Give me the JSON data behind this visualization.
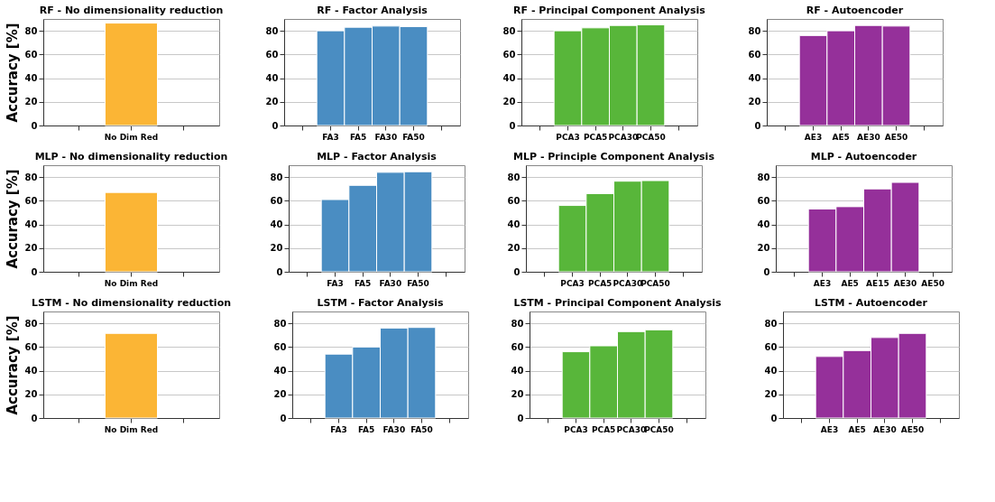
{
  "chart_data": [
    {
      "type": "bar",
      "title": "RF - No dimensionality reduction",
      "ylabel": "Accuracy [%]",
      "categories": [
        null,
        "No Dim Red",
        null
      ],
      "values": [
        null,
        86.5,
        null
      ],
      "color": "#fbb535",
      "ylim": [
        0,
        90
      ],
      "yticks": [
        0,
        20,
        40,
        60,
        80
      ],
      "grid": "y"
    },
    {
      "type": "bar",
      "title": "RF - Factor Analysis",
      "categories": [
        null,
        "FA3",
        "FA5",
        "FA30",
        "FA50",
        null
      ],
      "values": [
        null,
        80,
        83,
        84,
        83.5,
        null
      ],
      "color": "#4a8dc2",
      "ylim": [
        0,
        90
      ],
      "yticks": [
        0,
        20,
        40,
        60,
        80
      ],
      "grid": "y"
    },
    {
      "type": "bar",
      "title": "RF - Principal Component Analysis",
      "categories": [
        null,
        "PCA3",
        "PCA5",
        "PCA30",
        "PCA50",
        null
      ],
      "values": [
        null,
        80,
        82.5,
        84.5,
        85,
        null
      ],
      "color": "#58b63a",
      "ylim": [
        0,
        90
      ],
      "yticks": [
        0,
        20,
        40,
        60,
        80
      ],
      "grid": "y"
    },
    {
      "type": "bar",
      "title": "RF - Autoencoder",
      "categories": [
        null,
        "AE3",
        "AE5",
        "AE30",
        "AE50",
        null
      ],
      "values": [
        null,
        76,
        80,
        84.5,
        84,
        null
      ],
      "color": "#95309a",
      "ylim": [
        0,
        90
      ],
      "yticks": [
        0,
        20,
        40,
        60,
        80
      ],
      "grid": "y"
    },
    {
      "type": "bar",
      "title": "MLP - No dimensionality reduction",
      "ylabel": "Accuracy [%]",
      "categories": [
        null,
        "No Dim Red",
        null
      ],
      "values": [
        null,
        67,
        null
      ],
      "color": "#fbb535",
      "ylim": [
        0,
        90
      ],
      "yticks": [
        0,
        20,
        40,
        60,
        80
      ],
      "grid": "y"
    },
    {
      "type": "bar",
      "title": "MLP - Factor Analysis",
      "categories": [
        null,
        "FA3",
        "FA5",
        "FA30",
        "FA50",
        null
      ],
      "values": [
        null,
        61,
        73,
        84,
        84.5,
        null
      ],
      "color": "#4a8dc2",
      "ylim": [
        0,
        90
      ],
      "yticks": [
        0,
        20,
        40,
        60,
        80
      ],
      "grid": "y"
    },
    {
      "type": "bar",
      "title": "MLP - Principle Component Analysis",
      "categories": [
        null,
        "PCA3",
        "PCA5",
        "PCA30",
        "PCA50",
        null
      ],
      "values": [
        null,
        56,
        66,
        76.5,
        77,
        null
      ],
      "color": "#58b63a",
      "ylim": [
        0,
        90
      ],
      "yticks": [
        0,
        20,
        40,
        60,
        80
      ],
      "grid": "y"
    },
    {
      "type": "bar",
      "title": "MLP - Autoencoder",
      "categories": [
        null,
        "AE3",
        "AE5",
        "AE15",
        "AE30",
        "AE50"
      ],
      "values": [
        null,
        53,
        55,
        70,
        75.5,
        null
      ],
      "color": "#95309a",
      "ylim": [
        0,
        90
      ],
      "yticks": [
        0,
        20,
        40,
        60,
        80
      ],
      "grid": "y"
    },
    {
      "type": "bar",
      "title": "LSTM - No dimensionality reduction",
      "ylabel": "Accuracy [%]",
      "categories": [
        null,
        "No Dim Red",
        null
      ],
      "values": [
        null,
        71.5,
        null
      ],
      "color": "#fbb535",
      "ylim": [
        0,
        90
      ],
      "yticks": [
        0,
        20,
        40,
        60,
        80
      ],
      "grid": "y"
    },
    {
      "type": "bar",
      "title": "LSTM - Factor Analysis",
      "categories": [
        null,
        "FA3",
        "FA5",
        "FA30",
        "FA50",
        null
      ],
      "values": [
        null,
        54,
        60,
        76,
        76.5,
        null
      ],
      "color": "#4a8dc2",
      "ylim": [
        0,
        90
      ],
      "yticks": [
        0,
        20,
        40,
        60,
        80
      ],
      "grid": "y"
    },
    {
      "type": "bar",
      "title": "LSTM - Principal Component Analysis",
      "categories": [
        null,
        "PCA3",
        "PCA5",
        "PCA30",
        "PCA50",
        null
      ],
      "values": [
        null,
        56,
        61,
        73,
        74.5,
        null
      ],
      "color": "#58b63a",
      "ylim": [
        0,
        90
      ],
      "yticks": [
        0,
        20,
        40,
        60,
        80
      ],
      "grid": "y"
    },
    {
      "type": "bar",
      "title": "LSTM - Autoencoder",
      "categories": [
        null,
        "AE3",
        "AE5",
        "AE30",
        "AE50",
        null
      ],
      "values": [
        null,
        52,
        57,
        68,
        71.5,
        null
      ],
      "color": "#95309a",
      "ylim": [
        0,
        90
      ],
      "yticks": [
        0,
        20,
        40,
        60,
        80
      ],
      "grid": "y"
    }
  ]
}
